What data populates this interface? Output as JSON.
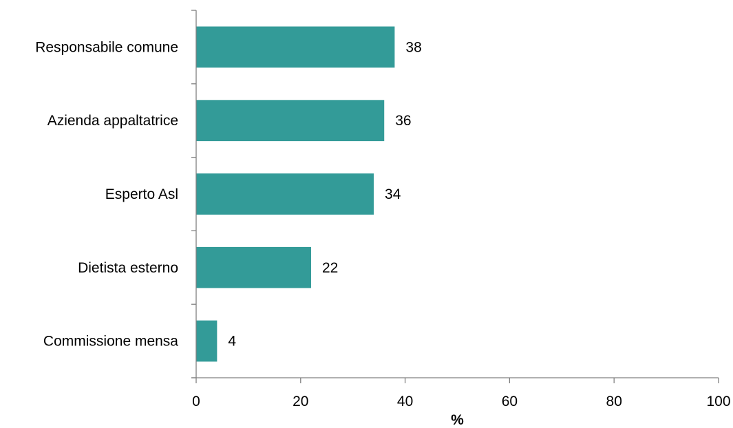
{
  "chart_data": {
    "type": "bar",
    "orientation": "horizontal",
    "categories": [
      "Responsabile comune",
      "Azienda appaltatrice",
      "Esperto Asl",
      "Dietista esterno",
      "Commissione mensa"
    ],
    "values": [
      38,
      36,
      34,
      22,
      4
    ],
    "data_labels": [
      "38",
      "36",
      "34",
      "22",
      "4"
    ],
    "title": "",
    "xlabel": "%",
    "ylabel": "",
    "xlim": [
      0,
      100
    ],
    "xticks": [
      0,
      20,
      40,
      60,
      80,
      100
    ],
    "xtick_labels": [
      "0",
      "20",
      "40",
      "60",
      "80",
      "100"
    ],
    "grid": false,
    "legend": "none",
    "bar_color": "#339B98"
  }
}
